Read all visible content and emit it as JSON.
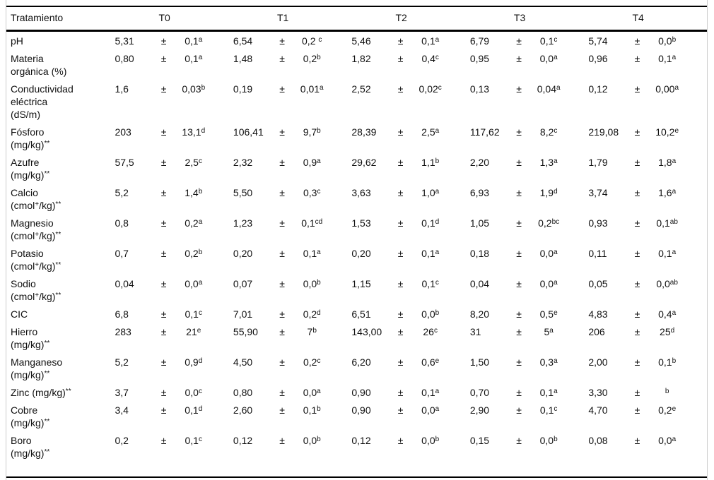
{
  "colors": {
    "rule_dark": "#000000",
    "rule_light": "#cccccc",
    "text": "#111111"
  },
  "table": {
    "pm_symbol": "±",
    "header": {
      "param_col": "Tratamiento",
      "treatments": [
        "T0",
        "T1",
        "T2",
        "T3",
        "T4"
      ]
    },
    "rows": [
      {
        "param_lines": [
          [
            {
              "t": "pH"
            }
          ]
        ],
        "cells": [
          {
            "v": "5,31",
            "e": "0,1",
            "s": "a"
          },
          {
            "v": "6,54",
            "e": "0,2 ",
            "s": "c"
          },
          {
            "v": "5,46",
            "e": "0,1",
            "s": "a"
          },
          {
            "v": "6,79",
            "e": "0,1",
            "s": "c"
          },
          {
            "v": "5,74",
            "e": "0,0",
            "s": "b"
          }
        ]
      },
      {
        "param_lines": [
          [
            {
              "t": "Materia"
            }
          ],
          [
            {
              "t": "orgánica (%)"
            }
          ]
        ],
        "cells": [
          {
            "v": "0,80",
            "e": "0,1",
            "s": "a"
          },
          {
            "v": "1,48",
            "e": "0,2",
            "s": "b"
          },
          {
            "v": "1,82",
            "e": "0,4",
            "s": "c"
          },
          {
            "v": "0,95",
            "e": "0,0",
            "s": "a"
          },
          {
            "v": "0,96",
            "e": "0,1",
            "s": "a"
          }
        ]
      },
      {
        "param_lines": [
          [
            {
              "t": "Conductividad"
            }
          ],
          [
            {
              "t": "eléctrica"
            }
          ],
          [
            {
              "t": "(dS/m)"
            }
          ]
        ],
        "cells": [
          {
            "v": "1,6",
            "e": "0,03",
            "s": "b"
          },
          {
            "v": "0,19",
            "e": "0,01",
            "s": "a"
          },
          {
            "v": "2,52",
            "e": "0,02",
            "s": "c"
          },
          {
            "v": "0,13",
            "e": "0,04",
            "s": "a"
          },
          {
            "v": "0,12",
            "e": "0,00",
            "s": "a"
          }
        ]
      },
      {
        "param_lines": [
          [
            {
              "t": "Fósforo"
            }
          ],
          [
            {
              "t": "(mg/kg)"
            },
            {
              "sup": "**"
            }
          ]
        ],
        "cells": [
          {
            "v": "203",
            "e": "13,1",
            "s": "d"
          },
          {
            "v": "106,41",
            "e": "9,7",
            "s": "b"
          },
          {
            "v": "28,39",
            "e": "2,5",
            "s": "a"
          },
          {
            "v": "117,62",
            "e": "8,2",
            "s": "c"
          },
          {
            "v": "219,08",
            "e": "10,2",
            "s": "e"
          }
        ]
      },
      {
        "param_lines": [
          [
            {
              "t": "Azufre"
            }
          ],
          [
            {
              "t": "(mg/kg)"
            },
            {
              "sup": "**"
            }
          ]
        ],
        "cells": [
          {
            "v": "57,5",
            "e": "2,5",
            "s": "c"
          },
          {
            "v": "2,32",
            "e": "0,9",
            "s": "a"
          },
          {
            "v": "29,62",
            "e": "1,1",
            "s": "b"
          },
          {
            "v": "2,20",
            "e": "1,3",
            "s": "a"
          },
          {
            "v": "1,79",
            "e": "1,8",
            "s": "a"
          }
        ]
      },
      {
        "param_lines": [
          [
            {
              "t": "Calcio"
            }
          ],
          [
            {
              "t": "(cmol"
            },
            {
              "sup": "+"
            },
            {
              "t": "/kg)"
            },
            {
              "sup": "**"
            }
          ]
        ],
        "cells": [
          {
            "v": "5,2",
            "e": "1,4",
            "s": "b"
          },
          {
            "v": "5,50",
            "e": "0,3",
            "s": "c"
          },
          {
            "v": "3,63",
            "e": "1,0",
            "s": "a"
          },
          {
            "v": "6,93",
            "e": "1,9",
            "s": "d"
          },
          {
            "v": "3,74",
            "e": "1,6",
            "s": "a"
          }
        ]
      },
      {
        "param_lines": [
          [
            {
              "t": "Magnesio"
            }
          ],
          [
            {
              "t": "(cmol"
            },
            {
              "sup": "+"
            },
            {
              "t": "/kg)"
            },
            {
              "sup": "**"
            }
          ]
        ],
        "cells": [
          {
            "v": "0,8",
            "e": "0,2",
            "s": "a"
          },
          {
            "v": "1,23",
            "e": "0,1",
            "s": "cd"
          },
          {
            "v": "1,53",
            "e": "0,1",
            "s": "d"
          },
          {
            "v": "1,05",
            "e": "0,2",
            "s": "bc"
          },
          {
            "v": "0,93",
            "e": "0,1",
            "s": "ab"
          }
        ]
      },
      {
        "param_lines": [
          [
            {
              "t": "Potasio"
            }
          ],
          [
            {
              "t": "(cmol"
            },
            {
              "sup": "+"
            },
            {
              "t": "/kg)"
            },
            {
              "sup": "**"
            }
          ]
        ],
        "cells": [
          {
            "v": "0,7",
            "e": "0,2",
            "s": "b"
          },
          {
            "v": "0,20",
            "e": "0,1",
            "s": "a"
          },
          {
            "v": "0,20",
            "e": "0,1",
            "s": "a"
          },
          {
            "v": "0,18",
            "e": "0,0",
            "s": "a"
          },
          {
            "v": "0,11",
            "e": "0,1",
            "s": "a"
          }
        ]
      },
      {
        "param_lines": [
          [
            {
              "t": "Sodio"
            }
          ],
          [
            {
              "t": "(cmol"
            },
            {
              "sup": "+"
            },
            {
              "t": "/kg)"
            },
            {
              "sup": "**"
            }
          ]
        ],
        "cells": [
          {
            "v": "0,04",
            "e": "0,0",
            "s": "a"
          },
          {
            "v": "0,07",
            "e": "0,0",
            "s": "b"
          },
          {
            "v": "1,15",
            "e": "0,1",
            "s": "c"
          },
          {
            "v": "0,04",
            "e": "0,0",
            "s": "a"
          },
          {
            "v": "0,05",
            "e": "0,0",
            "s": "ab"
          }
        ]
      },
      {
        "param_lines": [
          [
            {
              "t": "CIC"
            }
          ]
        ],
        "cells": [
          {
            "v": "6,8",
            "e": "0,1",
            "s": "c"
          },
          {
            "v": "7,01",
            "e": "0,2",
            "s": "d"
          },
          {
            "v": "6,51",
            "e": "0,0",
            "s": "b"
          },
          {
            "v": "8,20",
            "e": "0,5",
            "s": "e"
          },
          {
            "v": "4,83",
            "e": "0,4",
            "s": "a"
          }
        ]
      },
      {
        "param_lines": [
          [
            {
              "t": "Hierro"
            }
          ],
          [
            {
              "t": "(mg/kg)"
            },
            {
              "sup": "**"
            }
          ]
        ],
        "cells": [
          {
            "v": "283",
            "e": "21",
            "s": "e"
          },
          {
            "v": "55,90",
            "e": "7",
            "s": "b"
          },
          {
            "v": "143,00",
            "e": "26",
            "s": "c"
          },
          {
            "v": "31",
            "e": "5",
            "s": "a"
          },
          {
            "v": "206",
            "e": "25",
            "s": "d"
          }
        ]
      },
      {
        "param_lines": [
          [
            {
              "t": "Manganeso"
            }
          ],
          [
            {
              "t": "(mg/kg)"
            },
            {
              "sup": "**"
            }
          ]
        ],
        "cells": [
          {
            "v": "5,2",
            "e": "0,9",
            "s": "d"
          },
          {
            "v": "4,50",
            "e": "0,2",
            "s": "c"
          },
          {
            "v": "6,20",
            "e": "0,6",
            "s": "e"
          },
          {
            "v": "1,50",
            "e": "0,3",
            "s": "a"
          },
          {
            "v": "2,00",
            "e": "0,1",
            "s": "b"
          }
        ]
      },
      {
        "param_lines": [
          [
            {
              "t": "Zinc (mg/kg)"
            },
            {
              "sup": "**"
            }
          ]
        ],
        "cells": [
          {
            "v": "3,7",
            "e": "0,0",
            "s": "c"
          },
          {
            "v": "0,80",
            "e": "0,0",
            "s": "a"
          },
          {
            "v": "0,90",
            "e": "0,1",
            "s": "a"
          },
          {
            "v": "0,70",
            "e": "0,1",
            "s": "a"
          },
          {
            "v": "3,30",
            "e": "",
            "s": "b"
          }
        ]
      },
      {
        "param_lines": [
          [
            {
              "t": "Cobre"
            }
          ],
          [
            {
              "t": "(mg/kg)"
            },
            {
              "sup": "**"
            }
          ]
        ],
        "cells": [
          {
            "v": "3,4",
            "e": "0,1",
            "s": "d"
          },
          {
            "v": "2,60",
            "e": "0,1",
            "s": "b"
          },
          {
            "v": "0,90",
            "e": "0,0",
            "s": "a"
          },
          {
            "v": "2,90",
            "e": "0,1",
            "s": "c"
          },
          {
            "v": "4,70",
            "e": "0,2",
            "s": "e"
          }
        ]
      },
      {
        "param_lines": [
          [
            {
              "t": "Boro"
            }
          ],
          [
            {
              "t": "(mg/kg)"
            },
            {
              "sup": "**"
            }
          ]
        ],
        "cells": [
          {
            "v": "0,2",
            "e": "0,1",
            "s": "c"
          },
          {
            "v": "0,12",
            "e": "0,0",
            "s": "b"
          },
          {
            "v": "0,12",
            "e": "0,0",
            "s": "b"
          },
          {
            "v": "0,15",
            "e": "0,0",
            "s": "b"
          },
          {
            "v": "0,08",
            "e": "0,0",
            "s": "a"
          }
        ]
      }
    ]
  }
}
